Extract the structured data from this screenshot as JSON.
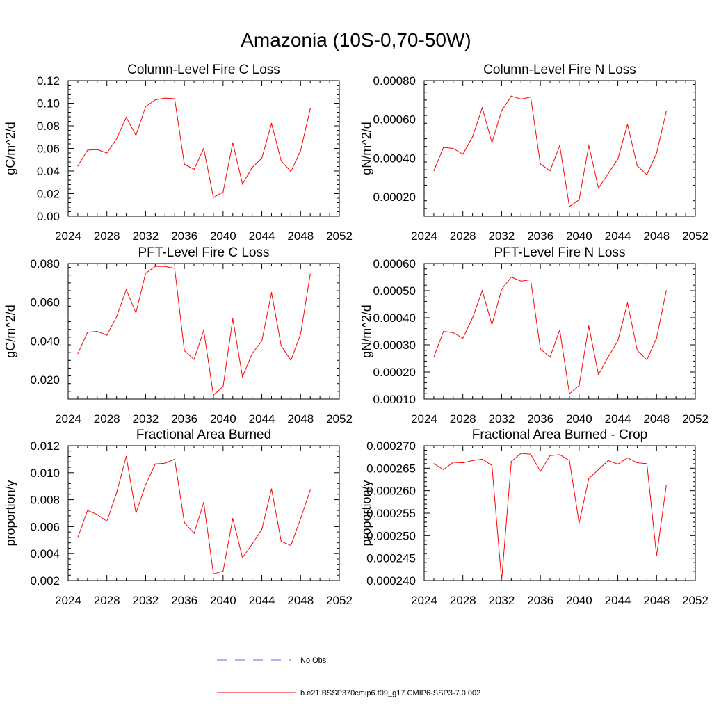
{
  "title": "Amazonia (10S-0,70-50W)",
  "colors": {
    "model_line": "#ff0000",
    "obs_line": "#6666cc",
    "axis": "#000000"
  },
  "legend": {
    "obs_label": "No Obs",
    "model_label": "b.e21.BSSP370cmip6.f09_g17.CMIP6-SSP3-7.0.002"
  },
  "chart_data": [
    {
      "type": "line",
      "title": "Column-Level Fire C Loss",
      "ylabel": "gC/m^2/d",
      "xlim": [
        2024,
        2052
      ],
      "ylim": [
        0,
        0.12
      ],
      "xticks": [
        2024,
        2028,
        2032,
        2036,
        2040,
        2044,
        2048,
        2052
      ],
      "xtick_labels": [
        "2024",
        "2028",
        "2032",
        "2036",
        "2040",
        "2044",
        "2048",
        "2052"
      ],
      "yticks": [
        0,
        0.02,
        0.04,
        0.06,
        0.08,
        0.1,
        0.12
      ],
      "ytick_labels": [
        "0.00",
        "0.02",
        "0.04",
        "0.06",
        "0.08",
        "0.10",
        "0.12"
      ],
      "x": [
        2025,
        2026,
        2027,
        2028,
        2029,
        2030,
        2031,
        2032,
        2033,
        2034,
        2035,
        2036,
        2037,
        2038,
        2039,
        2040,
        2041,
        2042,
        2043,
        2044,
        2045,
        2046,
        2047,
        2048,
        2049
      ],
      "y": [
        0.0445,
        0.0585,
        0.059,
        0.056,
        0.0685,
        0.0875,
        0.0715,
        0.097,
        0.103,
        0.1045,
        0.104,
        0.046,
        0.0415,
        0.06,
        0.0165,
        0.0215,
        0.065,
        0.0285,
        0.043,
        0.0515,
        0.082,
        0.049,
        0.0395,
        0.058,
        0.095
      ]
    },
    {
      "type": "line",
      "title": "Column-Level Fire N Loss",
      "ylabel": "gN/m^2/d",
      "xlim": [
        2024,
        2052
      ],
      "ylim": [
        0.0001,
        0.0008
      ],
      "xticks": [
        2024,
        2028,
        2032,
        2036,
        2040,
        2044,
        2048,
        2052
      ],
      "xtick_labels": [
        "2024",
        "2028",
        "2032",
        "2036",
        "2040",
        "2044",
        "2048",
        "2052"
      ],
      "yticks": [
        0.0002,
        0.0004,
        0.0006,
        0.0008
      ],
      "ytick_labels": [
        "0.00020",
        "0.00040",
        "0.00060",
        "0.00080"
      ],
      "x": [
        2025,
        2026,
        2027,
        2028,
        2029,
        2030,
        2031,
        2032,
        2033,
        2034,
        2035,
        2036,
        2037,
        2038,
        2039,
        2040,
        2041,
        2042,
        2043,
        2044,
        2045,
        2046,
        2047,
        2048,
        2049
      ],
      "y": [
        0.000335,
        0.000455,
        0.00045,
        0.00042,
        0.00051,
        0.00066,
        0.00048,
        0.000645,
        0.00072,
        0.000705,
        0.000715,
        0.00037,
        0.000335,
        0.000465,
        0.00015,
        0.000185,
        0.000465,
        0.000245,
        0.00032,
        0.000395,
        0.000575,
        0.00036,
        0.000315,
        0.000425,
        0.00064
      ]
    },
    {
      "type": "line",
      "title": "PFT-Level Fire C Loss",
      "ylabel": "gC/m^2/d",
      "xlim": [
        2024,
        2052
      ],
      "ylim": [
        0.01,
        0.08
      ],
      "xticks": [
        2024,
        2028,
        2032,
        2036,
        2040,
        2044,
        2048,
        2052
      ],
      "xtick_labels": [
        "2024",
        "2028",
        "2032",
        "2036",
        "2040",
        "2044",
        "2048",
        "2052"
      ],
      "yticks": [
        0.02,
        0.04,
        0.06,
        0.08
      ],
      "ytick_labels": [
        "0.020",
        "0.040",
        "0.060",
        "0.080"
      ],
      "x": [
        2025,
        2026,
        2027,
        2028,
        2029,
        2030,
        2031,
        2032,
        2033,
        2034,
        2035,
        2036,
        2037,
        2038,
        2039,
        2040,
        2041,
        2042,
        2043,
        2044,
        2045,
        2046,
        2047,
        2048,
        2049
      ],
      "y": [
        0.0335,
        0.0445,
        0.045,
        0.043,
        0.0525,
        0.0665,
        0.0545,
        0.075,
        0.0785,
        0.0785,
        0.0775,
        0.035,
        0.0305,
        0.0455,
        0.012,
        0.0165,
        0.0515,
        0.0215,
        0.0335,
        0.04,
        0.065,
        0.0375,
        0.03,
        0.0435,
        0.0745
      ]
    },
    {
      "type": "line",
      "title": "PFT-Level Fire N Loss",
      "ylabel": "gN/m^2/d",
      "xlim": [
        2024,
        2052
      ],
      "ylim": [
        0.0001,
        0.0006
      ],
      "xticks": [
        2024,
        2028,
        2032,
        2036,
        2040,
        2044,
        2048,
        2052
      ],
      "xtick_labels": [
        "2024",
        "2028",
        "2032",
        "2036",
        "2040",
        "2044",
        "2048",
        "2052"
      ],
      "yticks": [
        0.0001,
        0.0002,
        0.0003,
        0.0004,
        0.0005,
        0.0006
      ],
      "ytick_labels": [
        "0.00010",
        "0.00020",
        "0.00030",
        "0.00040",
        "0.00050",
        "0.00060"
      ],
      "x": [
        2025,
        2026,
        2027,
        2028,
        2029,
        2030,
        2031,
        2032,
        2033,
        2034,
        2035,
        2036,
        2037,
        2038,
        2039,
        2040,
        2041,
        2042,
        2043,
        2044,
        2045,
        2046,
        2047,
        2048,
        2049
      ],
      "y": [
        0.000255,
        0.00035,
        0.000345,
        0.000325,
        0.0004,
        0.0005,
        0.000375,
        0.000505,
        0.00055,
        0.000535,
        0.00054,
        0.000285,
        0.000255,
        0.000355,
        0.00012,
        0.00015,
        0.00037,
        0.00019,
        0.000255,
        0.000315,
        0.000455,
        0.00028,
        0.000245,
        0.000325,
        0.0005
      ]
    },
    {
      "type": "line",
      "title": "Fractional Area Burned",
      "ylabel": "proportion/y",
      "xlim": [
        2024,
        2052
      ],
      "ylim": [
        0.002,
        0.012
      ],
      "xticks": [
        2024,
        2028,
        2032,
        2036,
        2040,
        2044,
        2048,
        2052
      ],
      "xtick_labels": [
        "2024",
        "2028",
        "2032",
        "2036",
        "2040",
        "2044",
        "2048",
        "2052"
      ],
      "yticks": [
        0.002,
        0.004,
        0.006,
        0.008,
        0.01,
        0.012
      ],
      "ytick_labels": [
        "0.002",
        "0.004",
        "0.006",
        "0.008",
        "0.010",
        "0.012"
      ],
      "x": [
        2025,
        2026,
        2027,
        2028,
        2029,
        2030,
        2031,
        2032,
        2033,
        2034,
        2035,
        2036,
        2037,
        2038,
        2039,
        2040,
        2041,
        2042,
        2043,
        2044,
        2045,
        2046,
        2047,
        2048,
        2049
      ],
      "y": [
        0.0052,
        0.0072,
        0.0069,
        0.0064,
        0.0085,
        0.0112,
        0.007,
        0.0091,
        0.01065,
        0.0107,
        0.011,
        0.0063,
        0.0055,
        0.0078,
        0.0025,
        0.0027,
        0.0066,
        0.0037,
        0.0047,
        0.0058,
        0.0088,
        0.0049,
        0.0046,
        0.0066,
        0.0087
      ]
    },
    {
      "type": "line",
      "title": "Fractional Area Burned - Crop",
      "ylabel": "proportion/y",
      "xlim": [
        2024,
        2052
      ],
      "ylim": [
        0.00024,
        0.00027
      ],
      "xticks": [
        2024,
        2028,
        2032,
        2036,
        2040,
        2044,
        2048,
        2052
      ],
      "xtick_labels": [
        "2024",
        "2028",
        "2032",
        "2036",
        "2040",
        "2044",
        "2048",
        "2052"
      ],
      "yticks": [
        0.00024,
        0.000245,
        0.00025,
        0.000255,
        0.00026,
        0.000265,
        0.00027
      ],
      "ytick_labels": [
        "0.000240",
        "0.000245",
        "0.000250",
        "0.000255",
        "0.000260",
        "0.000265",
        "0.000270"
      ],
      "x": [
        2025,
        2026,
        2027,
        2028,
        2029,
        2030,
        2031,
        2032,
        2033,
        2034,
        2035,
        2036,
        2037,
        2038,
        2039,
        2040,
        2041,
        2042,
        2043,
        2044,
        2045,
        2046,
        2047,
        2048,
        2049
      ],
      "y": [
        0.000266,
        0.0002647,
        0.0002663,
        0.0002662,
        0.0002667,
        0.000267,
        0.0002656,
        0.00024,
        0.0002665,
        0.0002683,
        0.0002681,
        0.0002643,
        0.0002678,
        0.000268,
        0.0002667,
        0.0002528,
        0.0002627,
        0.0002647,
        0.0002667,
        0.0002659,
        0.0002673,
        0.0002662,
        0.000266,
        0.0002455,
        0.0002611
      ]
    }
  ]
}
